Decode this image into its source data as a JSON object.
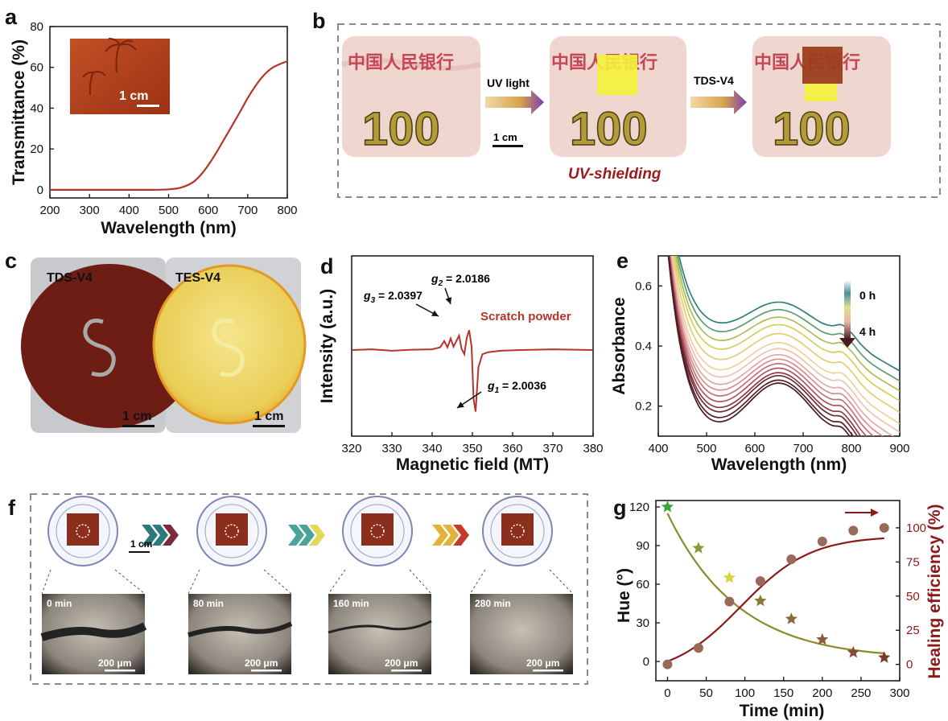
{
  "panels": {
    "a": {
      "letter": "a",
      "inset_scale": "1 cm"
    },
    "b": {
      "letter": "b",
      "arrow1_label": "UV light",
      "arrow2_label": "TDS-V4",
      "scale": "1 cm",
      "caption": "UV-shielding",
      "note_numbers": [
        "100",
        "100",
        "100"
      ]
    },
    "c": {
      "letter": "c",
      "left_label": "TDS-V4",
      "right_label": "TES-V4",
      "scale_left": "1 cm",
      "scale_right": "1 cm"
    },
    "d": {
      "letter": "d"
    },
    "e": {
      "letter": "e"
    },
    "f": {
      "letter": "f",
      "scale": "1 cm",
      "micro_times": [
        "0 min",
        "80 min",
        "160 min",
        "280 min"
      ],
      "micro_scale": "200 μm"
    },
    "g": {
      "letter": "g"
    }
  },
  "colors": {
    "curve_red": "#b5342a",
    "dark_red": "#8b1a1a",
    "olive": "#8a8a2a",
    "brown_marker": "#8b4a3a",
    "caption_red": "#9b1b1b",
    "dash_gray": "#8a8a8a"
  },
  "chart_data": [
    {
      "panel": "a",
      "type": "line",
      "xlabel": "Wavelength (nm)",
      "ylabel": "Transmittance (%)",
      "xlim": [
        200,
        800
      ],
      "ylim": [
        -4,
        80
      ],
      "xticks": [
        200,
        300,
        400,
        500,
        600,
        700,
        800
      ],
      "yticks": [
        0,
        20,
        40,
        60,
        80
      ],
      "x": [
        200,
        300,
        400,
        450,
        500,
        530,
        560,
        580,
        600,
        620,
        650,
        680,
        700,
        720,
        740,
        760,
        780,
        800
      ],
      "y": [
        0,
        0,
        0,
        0,
        0.2,
        1,
        3.5,
        7,
        12,
        18,
        28,
        38,
        45,
        51,
        56,
        59.5,
        61.5,
        63
      ]
    },
    {
      "panel": "d",
      "type": "line",
      "xlabel": "Magnetic field (MT)",
      "ylabel": "Intensity (a.u.)",
      "xlim": [
        320,
        380
      ],
      "xticks": [
        320,
        330,
        340,
        350,
        360,
        370,
        380
      ],
      "annotations": [
        {
          "text": "g3 = 2.0397",
          "sym": "g",
          "sub": "3",
          "rest": " = 2.0397"
        },
        {
          "text": "g2 = 2.0186",
          "sym": "g",
          "sub": "2",
          "rest": " = 2.0186"
        },
        {
          "text": "g1 = 2.0036",
          "sym": "g",
          "sub": "1",
          "rest": " = 2.0036"
        }
      ],
      "series_label": "Scratch powder",
      "x": [
        320,
        325,
        330,
        335,
        340,
        342,
        343,
        343.8,
        344.6,
        345.3,
        346,
        346.7,
        347.3,
        348,
        348.6,
        349.2,
        349.8,
        350.3,
        350.8,
        351.5,
        352.5,
        354,
        357,
        362,
        370,
        380
      ],
      "y": [
        0,
        0.1,
        -0.1,
        0.05,
        0.1,
        0.4,
        1.3,
        0.4,
        1.7,
        0.5,
        1.3,
        2.1,
        0.2,
        -0.6,
        1.8,
        2.9,
        0.5,
        -7.2,
        -9.0,
        -2.5,
        -0.6,
        -0.3,
        -0.1,
        0.0,
        0.1,
        0.0
      ]
    },
    {
      "panel": "e",
      "type": "line",
      "xlabel": "Wavelength (nm)",
      "ylabel": "Absorbance",
      "xlim": [
        400,
        900
      ],
      "ylim": [
        0.1,
        0.7
      ],
      "xticks": [
        400,
        500,
        600,
        700,
        800,
        900
      ],
      "yticks": [
        0.2,
        0.4,
        0.6
      ],
      "legend": {
        "top": "0 h",
        "bottom": "4 h"
      },
      "peak_values": [
        0.545,
        0.52,
        0.495,
        0.47,
        0.44,
        0.41,
        0.39,
        0.37,
        0.355,
        0.34,
        0.325,
        0.31,
        0.3,
        0.285,
        0.275
      ],
      "series_colors": [
        "#2f7f7a",
        "#5d9d6e",
        "#a8bf57",
        "#d3cf58",
        "#e4cc72",
        "#eed29a",
        "#f0c2b1",
        "#e6a8a5",
        "#d88c8e",
        "#c47277",
        "#a85560",
        "#8d3c47",
        "#6d2a33",
        "#5a1f27",
        "#471b20"
      ]
    },
    {
      "panel": "g",
      "type": "scatter",
      "xlabel": "Time (min)",
      "ylabel_left": "Hue (°)",
      "ylabel_right": "Healing efficiency (%)",
      "xlim": [
        -15,
        300
      ],
      "xticks": [
        0,
        50,
        100,
        150,
        200,
        250,
        300
      ],
      "ylim_left": [
        -15,
        125
      ],
      "yticks_left": [
        0,
        30,
        60,
        90,
        120
      ],
      "ylim_right": [
        -12,
        120
      ],
      "yticks_right": [
        0,
        25,
        50,
        75,
        100
      ],
      "series": [
        {
          "name": "Hue",
          "x": [
            0,
            40,
            80,
            120,
            160,
            200,
            240,
            280
          ],
          "y": [
            120,
            88,
            65,
            47,
            33,
            17,
            7,
            3
          ],
          "marker_colors": [
            "#3aa63a",
            "#8a9a3a",
            "#d8d43a",
            "#8a7a3a",
            "#8a6a3a",
            "#8a5a3a",
            "#8a4a3a",
            "#7a3a2a"
          ]
        },
        {
          "name": "Healing efficiency",
          "x": [
            0,
            40,
            80,
            120,
            160,
            200,
            240,
            280
          ],
          "y": [
            0,
            12,
            46,
            61,
            77,
            90,
            98,
            100
          ]
        }
      ]
    }
  ]
}
